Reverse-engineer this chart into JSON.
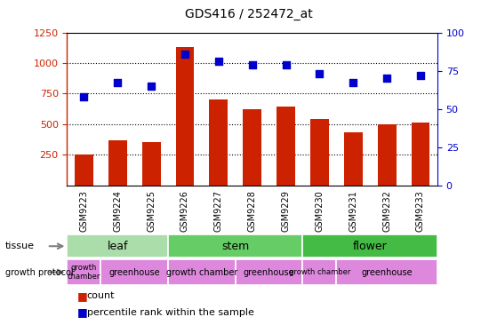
{
  "title": "GDS416 / 252472_at",
  "samples": [
    "GSM9223",
    "GSM9224",
    "GSM9225",
    "GSM9226",
    "GSM9227",
    "GSM9228",
    "GSM9229",
    "GSM9230",
    "GSM9231",
    "GSM9232",
    "GSM9233"
  ],
  "counts": [
    255,
    370,
    355,
    1130,
    700,
    625,
    645,
    545,
    435,
    500,
    510
  ],
  "percentiles": [
    58,
    67,
    65,
    86,
    81,
    79,
    79,
    73,
    67,
    70,
    72
  ],
  "ylim_left": [
    0,
    1250
  ],
  "ylim_right": [
    0,
    100
  ],
  "yticks_left": [
    250,
    500,
    750,
    1000,
    1250
  ],
  "yticks_right": [
    0,
    25,
    50,
    75,
    100
  ],
  "bar_color": "#cc2200",
  "dot_color": "#0000cc",
  "grid_color": "#000000",
  "tissue_groups": [
    {
      "name": "leaf",
      "start": 0,
      "end": 3,
      "color": "#aaddaa"
    },
    {
      "name": "stem",
      "start": 3,
      "end": 7,
      "color": "#66cc66"
    },
    {
      "name": "flower",
      "start": 7,
      "end": 11,
      "color": "#44bb44"
    }
  ],
  "protocol_groups": [
    {
      "name": "growth\nchamber",
      "start": 0,
      "end": 1,
      "color": "#dd88dd"
    },
    {
      "name": "greenhouse",
      "start": 1,
      "end": 3,
      "color": "#dd88dd"
    },
    {
      "name": "growth chamber",
      "start": 3,
      "end": 5,
      "color": "#dd88dd"
    },
    {
      "name": "greenhouse",
      "start": 5,
      "end": 7,
      "color": "#dd88dd"
    },
    {
      "name": "growth chamber",
      "start": 7,
      "end": 8,
      "color": "#dd88dd"
    },
    {
      "name": "greenhouse",
      "start": 8,
      "end": 11,
      "color": "#dd88dd"
    }
  ],
  "legend": [
    {
      "label": "count",
      "color": "#cc2200"
    },
    {
      "label": "percentile rank within the sample",
      "color": "#0000cc"
    }
  ],
  "tick_bg": "#cccccc",
  "fig_bg": "#ffffff"
}
